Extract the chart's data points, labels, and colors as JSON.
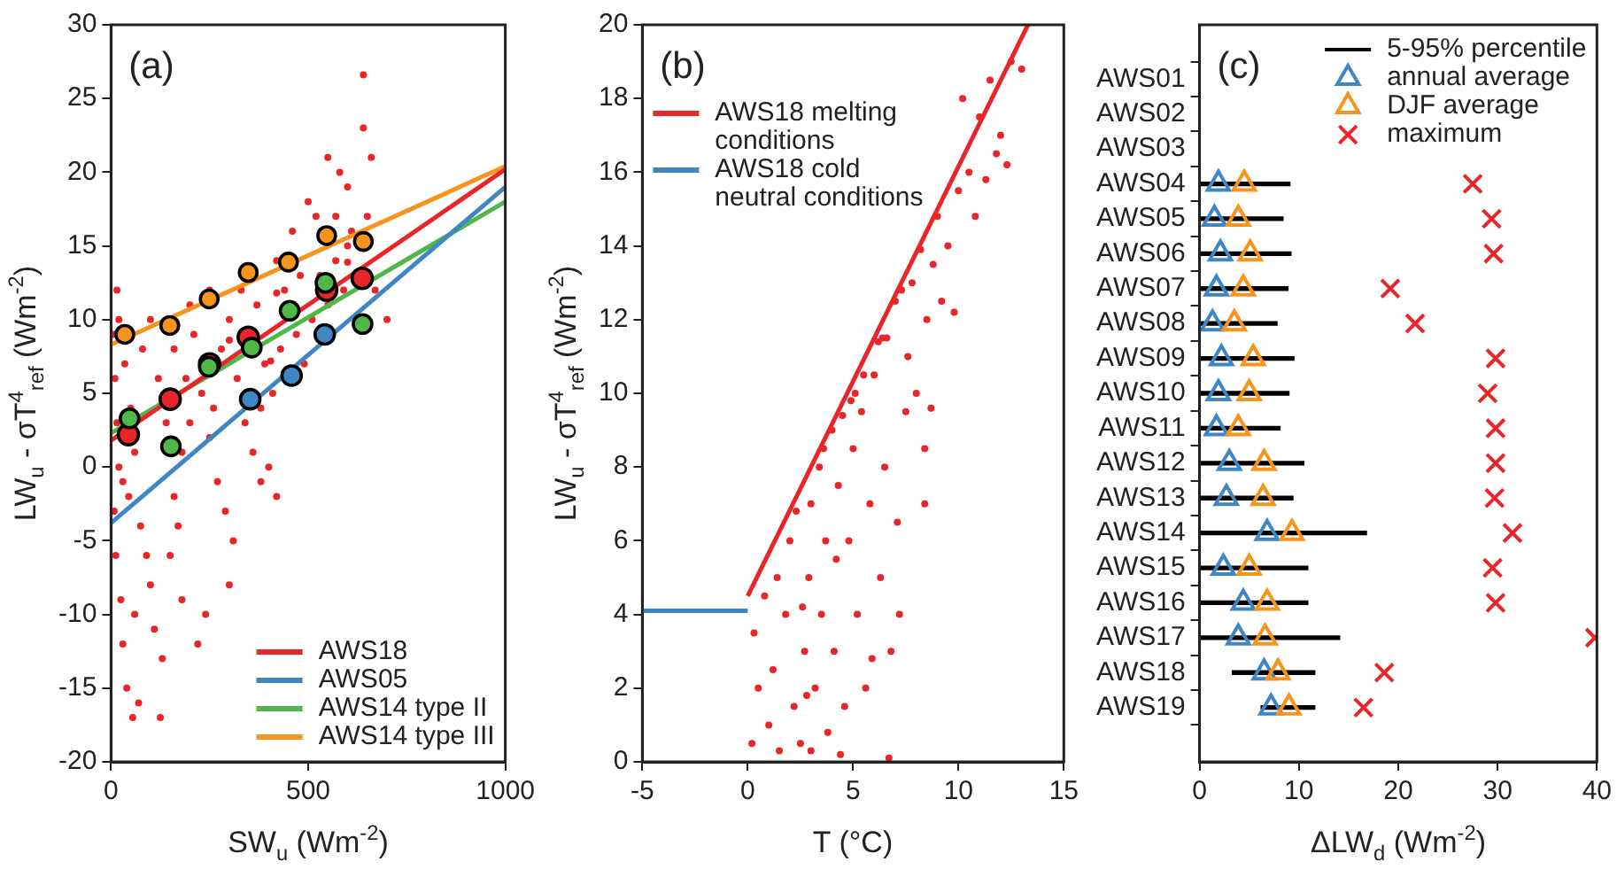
{
  "chart_data": [
    {
      "type": "scatter",
      "title": "(a)",
      "xlabel": "SW$_{u}$ (Wm$^{-2}$)",
      "ylabel": "LW$_{u}$ - σT$^{4}$$_{ref}$ (Wm$^{-2}$)",
      "xlim": [
        0,
        1000
      ],
      "xticks": [
        0,
        500,
        1000
      ],
      "ylim": [
        -20,
        30
      ],
      "yticks": [
        -20,
        -15,
        -10,
        -5,
        0,
        5,
        10,
        15,
        20,
        25,
        30
      ],
      "legend": "bottom right",
      "series": [
        {
          "type": "scatter",
          "color": "#e8262a",
          "marker": "circle",
          "x": [
            5,
            10,
            15,
            20,
            8,
            12,
            25,
            30,
            40,
            55,
            70,
            20,
            35,
            50,
            60,
            45,
            75,
            90,
            100,
            110,
            130,
            125,
            150,
            160,
            170,
            180,
            200,
            80,
            100,
            120,
            140,
            160,
            190,
            210,
            230,
            250,
            270,
            290,
            310,
            220,
            240,
            260,
            280,
            300,
            320,
            340,
            360,
            380,
            400,
            420,
            330,
            300,
            370,
            390,
            410,
            430,
            420,
            470,
            490,
            510,
            530,
            550,
            570,
            590,
            610,
            600,
            650,
            670,
            700,
            420,
            460,
            500,
            520,
            550,
            580,
            640,
            640,
            660,
            570,
            600,
            480,
            405,
            380,
            300,
            180,
            60,
            30,
            15,
            200,
            250,
            440,
            600
          ],
          "values": [
            9,
            6,
            3,
            0,
            -3,
            -6,
            -9,
            -12,
            -15,
            -17,
            -16,
            10,
            7,
            4,
            1,
            -2,
            -4,
            -6,
            -8,
            -11,
            -13,
            -17,
            -6,
            -2,
            -4,
            1,
            3,
            8,
            10,
            6,
            3,
            8,
            6,
            9,
            5,
            2,
            -1,
            -3,
            -5,
            -12,
            -10,
            4,
            8,
            10,
            6,
            3,
            1,
            -1,
            0,
            -2,
            12,
            8.6,
            11,
            7,
            5,
            8,
            11.8,
            9,
            7,
            10,
            13,
            11,
            14,
            12,
            16,
            13.9,
            17,
            12,
            10,
            14,
            16,
            18,
            17,
            21,
            20,
            23,
            26.6,
            21,
            17,
            19,
            13,
            7.2,
            4,
            -8,
            -9,
            -10,
            -1,
            12,
            11,
            12,
            12,
            15
          ]
        },
        {
          "name": "AWS18",
          "type": "line",
          "color": "#e8262a",
          "marker": "none",
          "x": [
            0,
            1000
          ],
          "values": [
            1.8,
            20.2
          ]
        },
        {
          "name": "AWS05",
          "type": "line",
          "color": "#3f86c4",
          "marker": "none",
          "x": [
            0,
            1000
          ],
          "values": [
            -3.8,
            19.0
          ]
        },
        {
          "name": "AWS14 type II",
          "type": "line",
          "color": "#4fb848",
          "marker": "none",
          "x": [
            0,
            1000
          ],
          "values": [
            2.3,
            18.0
          ]
        },
        {
          "name": "AWS14 type III",
          "type": "line",
          "color": "#f7941d",
          "marker": "none",
          "x": [
            0,
            1000
          ],
          "values": [
            8.3,
            20.4
          ]
        },
        {
          "type": "scatter",
          "color": "#e8262a",
          "marker": "circle",
          "x": [
            44,
            150,
            250,
            348,
            547,
            637
          ],
          "values": [
            2.2,
            4.6,
            7.0,
            8.8,
            12.0,
            12.8
          ]
        },
        {
          "type": "scatter",
          "color": "#3f86c4",
          "marker": "circle",
          "x": [
            353,
            458,
            542
          ],
          "values": [
            4.6,
            6.2,
            9.0
          ]
        },
        {
          "type": "scatter",
          "color": "#4fb848",
          "marker": "circle",
          "x": [
            47,
            152,
            248,
            357,
            453,
            544,
            638
          ],
          "values": [
            3.3,
            1.4,
            6.8,
            8.1,
            10.6,
            12.5,
            9.7
          ]
        },
        {
          "type": "scatter",
          "color": "#f7941d",
          "marker": "circle",
          "x": [
            35,
            149,
            249,
            348,
            450,
            547,
            640
          ],
          "values": [
            9.0,
            9.6,
            11.4,
            13.2,
            13.9,
            15.7,
            15.3
          ]
        }
      ]
    },
    {
      "type": "scatter",
      "title": "(b)",
      "xlabel": "T (°C)",
      "ylabel": "LW$_{u}$ - σT$^{4}$$_{ref}$ (Wm$^{-2}$)",
      "xlim": [
        -5,
        15
      ],
      "xticks": [
        -5,
        0,
        5,
        10,
        15
      ],
      "ylim": [
        0,
        20
      ],
      "yticks": [
        0,
        2,
        4,
        6,
        8,
        10,
        12,
        14,
        16,
        18,
        20
      ],
      "legend": "top left",
      "series": [
        {
          "type": "scatter",
          "color": "#e8262a",
          "marker": "circle",
          "x": [
            0.2,
            0.5,
            0.3,
            0.8,
            1,
            1.5,
            1.2,
            1.8,
            2,
            2.2,
            2.5,
            2.7,
            2.9,
            3,
            3.2,
            3.4,
            3.5,
            3.7,
            3.8,
            4,
            4.1,
            4.2,
            4.3,
            4.5,
            4.6,
            4.8,
            5,
            5.1,
            5.2,
            5.4,
            5.5,
            5.6,
            5.8,
            6,
            6.2,
            6.3,
            6.5,
            6.6,
            6.8,
            7,
            7.1,
            7.3,
            7.5,
            7.6,
            7.8,
            8,
            8.2,
            8.4,
            8.5,
            8.7,
            8.8,
            9,
            9.2,
            9.5,
            9.8,
            10,
            10.2,
            10.5,
            10.8,
            11,
            11.3,
            11.5,
            11.8,
            12,
            12.3,
            12.5,
            13,
            3,
            2.8,
            4.4,
            6.7,
            1.4,
            2.3,
            3.6,
            2.6,
            4.9,
            6.4,
            5.9,
            7.2,
            8.4
          ],
          "values": [
            0.5,
            2,
            3.5,
            4.5,
            1,
            0.3,
            2.5,
            4,
            6,
            1.5,
            0.5,
            3,
            5,
            7,
            2,
            8,
            4,
            6,
            0.8,
            9,
            3,
            5.5,
            7.5,
            9.4,
            1.5,
            6,
            8.5,
            10,
            4,
            9.5,
            10.5,
            2,
            7,
            10.5,
            11.4,
            5,
            8,
            11.5,
            3,
            12.5,
            6.5,
            12.8,
            9.5,
            11,
            13,
            10,
            13.9,
            7,
            12,
            9.6,
            13.5,
            14.8,
            12.5,
            14,
            12.2,
            15.5,
            18,
            16,
            14.8,
            17.5,
            15.8,
            18.5,
            16.5,
            17,
            16.2,
            19,
            18.8,
            0.3,
            1.8,
            0.2,
            0.1,
            5,
            6.8,
            8.5,
            4.2,
            9.8,
            11.5,
            2.8,
            4,
            8.5
          ]
        },
        {
          "name": "AWS18 melting conditions",
          "type": "line",
          "color": "#e8262a",
          "marker": "none",
          "x": [
            0,
            13.3
          ],
          "values": [
            4.5,
            20
          ]
        },
        {
          "name": "AWS18 cold neutral conditions",
          "type": "line",
          "color": "#3f86c4",
          "marker": "none",
          "x": [
            -5,
            0
          ],
          "values": [
            4.1,
            4.1
          ]
        }
      ]
    },
    {
      "type": "scatter",
      "orientation": "horizontal",
      "title": "(c)",
      "xlabel": "ΔLW$_{d}$ (Wm$^{-2}$)",
      "categories": [
        "AWS01",
        "AWS02",
        "AWS03",
        "AWS04",
        "AWS05",
        "AWS06",
        "AWS07",
        "AWS08",
        "AWS09",
        "AWS10",
        "AWS11",
        "AWS12",
        "AWS13",
        "AWS14",
        "AWS15",
        "AWS16",
        "AWS17",
        "AWS18",
        "AWS19"
      ],
      "xlim": [
        0,
        40
      ],
      "xticks": [
        0,
        10,
        20,
        30,
        40
      ],
      "legend": "top right",
      "series": [
        {
          "name": "5-95% percentile",
          "type": "bar",
          "color": "#000000",
          "base": [
            null,
            null,
            null,
            0,
            0,
            0,
            0,
            0,
            0,
            0,
            0,
            0,
            0,
            0,
            0,
            0,
            0,
            3.3,
            6.2
          ],
          "values": [
            null,
            null,
            null,
            9.1,
            8.4,
            9.2,
            8.9,
            7.8,
            9.5,
            9.0,
            8.1,
            10.5,
            9.4,
            16.8,
            10.9,
            10.9,
            14.1,
            8.3,
            5.4
          ]
        },
        {
          "name": "annual average",
          "type": "scatter",
          "color": "#3f86c4",
          "marker": "triangle",
          "values": [
            null,
            null,
            null,
            1.9,
            1.5,
            2.1,
            1.7,
            1.3,
            2.2,
            1.9,
            1.7,
            3.0,
            2.7,
            6.8,
            2.4,
            4.4,
            3.9,
            6.5,
            7.2
          ]
        },
        {
          "name": "DJF average",
          "type": "scatter",
          "color": "#f7941d",
          "marker": "triangle",
          "values": [
            null,
            null,
            null,
            4.5,
            3.9,
            5.1,
            4.4,
            3.5,
            5.4,
            5.0,
            3.9,
            6.5,
            6.4,
            9.3,
            5.0,
            6.8,
            6.6,
            7.9,
            9.0
          ]
        },
        {
          "name": "maximum",
          "type": "scatter",
          "color": "#e8262a",
          "marker": "cross",
          "values": [
            null,
            null,
            null,
            27.5,
            29.4,
            29.6,
            19.2,
            21.7,
            29.8,
            29.0,
            29.8,
            29.8,
            29.7,
            31.5,
            29.5,
            29.8,
            39.8,
            18.6,
            16.5
          ]
        }
      ]
    }
  ]
}
